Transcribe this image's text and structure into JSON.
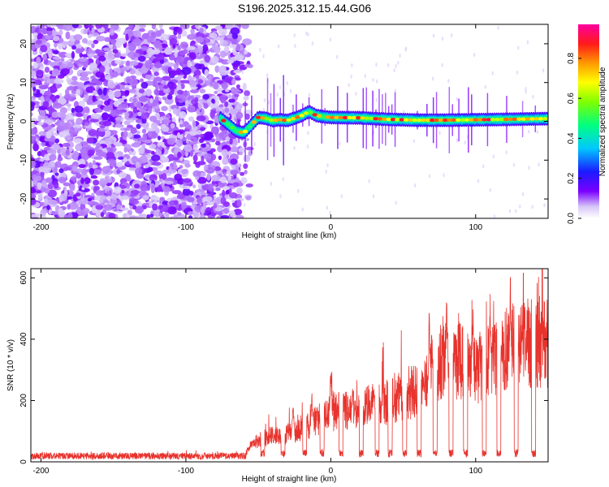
{
  "title": "S196.2025.312.15.44.G06",
  "chart_data": [
    {
      "type": "heatmap",
      "xlabel": "Height of straight line (km)",
      "ylabel": "Frequency (Hz)",
      "xlim": [
        -207,
        150
      ],
      "ylim": [
        -25,
        25
      ],
      "xticks": [
        -200,
        -100,
        0,
        100
      ],
      "xtick_labels": [
        "-200",
        "-100",
        "0",
        "100"
      ],
      "yticks": [
        -20,
        -10,
        0,
        10,
        20
      ],
      "ytick_labels": [
        "-20",
        "-10",
        "0",
        "10",
        "20"
      ],
      "colorbar": {
        "label": "Normalized spectral amplitude",
        "range": [
          0,
          0.97
        ],
        "ticks": [
          0.0,
          0.2,
          0.4,
          0.6,
          0.8
        ],
        "tick_labels": [
          "0.0",
          "0.2",
          "0.4",
          "0.6",
          "0.8"
        ]
      },
      "noise_region_x": [
        -207,
        -63
      ],
      "dip": {
        "x": [
          -72,
          -55
        ],
        "min_freq": -3
      },
      "ridge": [
        {
          "x": -75,
          "freq": 0.5
        },
        {
          "x": -70,
          "freq": -1
        },
        {
          "x": -65,
          "freq": -2.5
        },
        {
          "x": -60,
          "freq": -3
        },
        {
          "x": -55,
          "freq": -1
        },
        {
          "x": -50,
          "freq": 1
        },
        {
          "x": -45,
          "freq": 0.8
        },
        {
          "x": -40,
          "freq": 0.2
        },
        {
          "x": -35,
          "freq": 0.4
        },
        {
          "x": -30,
          "freq": 0.2
        },
        {
          "x": -25,
          "freq": 0.8
        },
        {
          "x": -20,
          "freq": 1.5
        },
        {
          "x": -15,
          "freq": 2.5
        },
        {
          "x": -10,
          "freq": 1.5
        },
        {
          "x": -5,
          "freq": 1.2
        },
        {
          "x": 0,
          "freq": 1
        },
        {
          "x": 20,
          "freq": 0.9
        },
        {
          "x": 40,
          "freq": 0.5
        },
        {
          "x": 60,
          "freq": 0.3
        },
        {
          "x": 80,
          "freq": 0.3
        },
        {
          "x": 100,
          "freq": 0.4
        },
        {
          "x": 120,
          "freq": 0.5
        },
        {
          "x": 150,
          "freq": 0.7
        }
      ]
    },
    {
      "type": "line",
      "xlabel": "Height of straight line (km)",
      "ylabel": "SNR (10 * v/v)",
      "xlim": [
        -207,
        150
      ],
      "ylim": [
        0,
        630
      ],
      "xticks": [
        -200,
        -100,
        0,
        100
      ],
      "xtick_labels": [
        "-200",
        "-100",
        "0",
        "100"
      ],
      "yticks": [
        0,
        200,
        400,
        600
      ],
      "ytick_labels": [
        "0",
        "200",
        "400",
        "600"
      ],
      "series": [
        {
          "name": "SNR",
          "color": "#e8322c",
          "baseline": [
            {
              "x": -207,
              "y": 20
            },
            {
              "x": -60,
              "y": 22
            },
            {
              "x": -55,
              "y": 60
            },
            {
              "x": -45,
              "y": 90
            },
            {
              "x": -30,
              "y": 100
            },
            {
              "x": -15,
              "y": 130
            },
            {
              "x": 0,
              "y": 180
            },
            {
              "x": 20,
              "y": 190
            },
            {
              "x": 40,
              "y": 220
            },
            {
              "x": 60,
              "y": 260
            },
            {
              "x": 70,
              "y": 340
            },
            {
              "x": 80,
              "y": 380
            },
            {
              "x": 90,
              "y": 360
            },
            {
              "x": 100,
              "y": 330
            },
            {
              "x": 115,
              "y": 380
            },
            {
              "x": 125,
              "y": 420
            },
            {
              "x": 135,
              "y": 440
            },
            {
              "x": 150,
              "y": 430
            }
          ],
          "dropouts_x": [
            -47,
            -33,
            -18,
            -6,
            7,
            21,
            32,
            41,
            51,
            61,
            72,
            83,
            93,
            106,
            116,
            128,
            140
          ],
          "peaks": [
            {
              "x": -47,
              "y": 240
            },
            {
              "x": -26,
              "y": 200
            },
            {
              "x": -13,
              "y": 230
            },
            {
              "x": 0,
              "y": 320
            },
            {
              "x": 15,
              "y": 250
            },
            {
              "x": 30,
              "y": 260
            },
            {
              "x": 48,
              "y": 300
            },
            {
              "x": 62,
              "y": 370
            },
            {
              "x": 68,
              "y": 510
            },
            {
              "x": 80,
              "y": 560
            },
            {
              "x": 98,
              "y": 520
            },
            {
              "x": 110,
              "y": 560
            },
            {
              "x": 124,
              "y": 625
            },
            {
              "x": 140,
              "y": 610
            }
          ]
        }
      ]
    }
  ]
}
